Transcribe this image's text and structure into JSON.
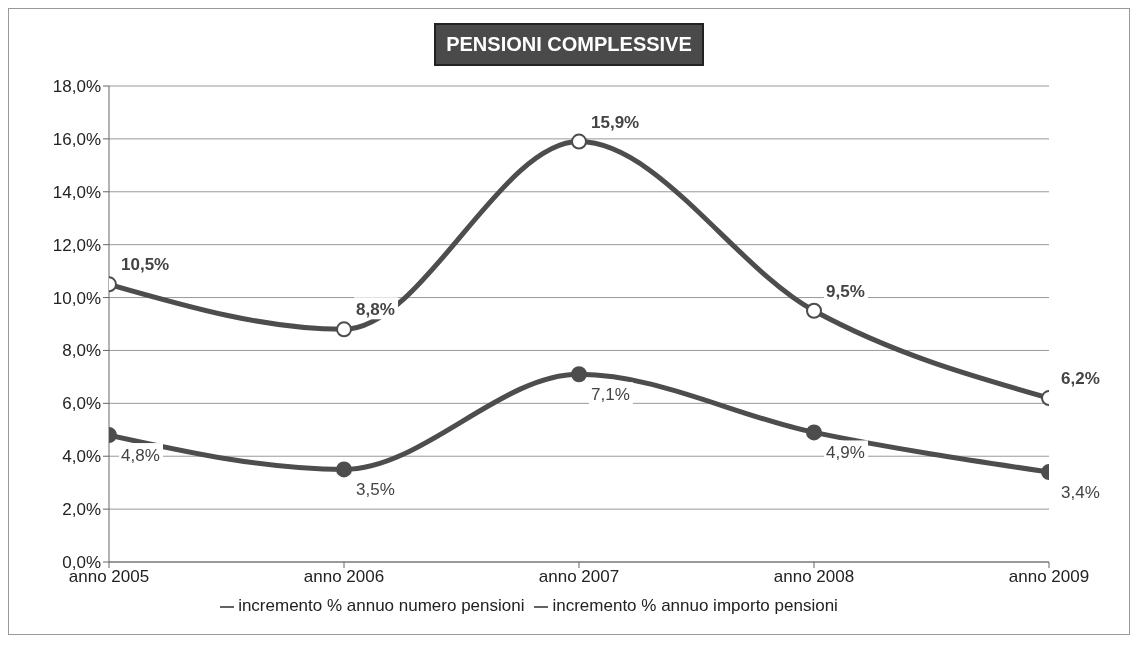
{
  "chart_data": {
    "type": "line",
    "title": "PENSIONI COMPLESSIVE",
    "categories": [
      "anno 2005",
      "anno 2006",
      "anno 2007",
      "anno 2008",
      "anno 2009"
    ],
    "series": [
      {
        "name": "incremento % annuo numero pensioni",
        "color": "#4d4d4d",
        "values": [
          4.8,
          3.5,
          7.1,
          4.9,
          3.4
        ],
        "value_labels": [
          "4,8%",
          "3,5%",
          "7,1%",
          "4,9%",
          "3,4%"
        ]
      },
      {
        "name": "incremento % annuo importo pensioni",
        "color": "#4d4d4d",
        "values": [
          10.5,
          8.8,
          15.9,
          9.5,
          6.2
        ],
        "value_labels": [
          "10,5%",
          "8,8%",
          "15,9%",
          "9,5%",
          "6,2%"
        ]
      }
    ],
    "ylim": [
      0,
      18
    ],
    "yticks": [
      {
        "value": 0,
        "label": "0,0%"
      },
      {
        "value": 2,
        "label": "2,0%"
      },
      {
        "value": 4,
        "label": "4,0%"
      },
      {
        "value": 6,
        "label": "6,0%"
      },
      {
        "value": 8,
        "label": "8,0%"
      },
      {
        "value": 10,
        "label": "10,0%"
      },
      {
        "value": 12,
        "label": "12,0%"
      },
      {
        "value": 14,
        "label": "14,0%"
      },
      {
        "value": 16,
        "label": "16,0%"
      },
      {
        "value": 18,
        "label": "18,0%"
      }
    ],
    "grid": "y",
    "legend": "bottom",
    "marker": "circle",
    "line_style": "solid"
  }
}
